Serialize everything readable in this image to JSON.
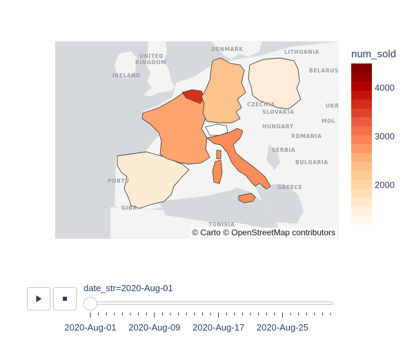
{
  "map": {
    "attribution": "© Carto © OpenStreetMap contributors",
    "land_color": "#f4f5f3",
    "sea_color": "#d5d9dc",
    "labels": {
      "united_kingdom_1": "UNITED",
      "united_kingdom_2": "KINGDOM",
      "ireland": "IRELAND",
      "denmark": "DENMARK",
      "lithuania": "LITHUANIA",
      "belarus": "BELARUS",
      "czechia": "CZECHIA",
      "slovakia": "SLOVAKIA",
      "hungary": "HUNGARY",
      "romania": "ROMANIA",
      "serbia": "SERBIA",
      "bulgaria": "BULGARIA",
      "greece": "GREECE",
      "tunisia": "TUNISIA",
      "portugal_partial": "PORTU",
      "gibraltar_partial": "GIBR",
      "moldova_partial": "MOL",
      "ukraine_partial": "UKR"
    },
    "regions": [
      {
        "name": "Belgium",
        "num_sold": 4300,
        "color": "#d7301f"
      },
      {
        "name": "Italy",
        "num_sold": 3200,
        "color": "#fc8d59"
      },
      {
        "name": "France",
        "num_sold": 2900,
        "color": "#fda46f"
      },
      {
        "name": "Germany",
        "num_sold": 2400,
        "color": "#fdc38d"
      },
      {
        "name": "Spain",
        "num_sold": 1500,
        "color": "#feebd5"
      },
      {
        "name": "Poland",
        "num_sold": 1450,
        "color": "#feecd8"
      }
    ]
  },
  "colorbar": {
    "title": "num_sold",
    "min": 1200,
    "max": 4500,
    "ticks": [
      2000,
      3000,
      4000
    ],
    "tick_labels": [
      "2000",
      "3000",
      "4000"
    ],
    "colors": [
      "#fff7ec",
      "#fee8c8",
      "#fdd49e",
      "#fdbb84",
      "#fc8d59",
      "#ef6548",
      "#d7301f",
      "#b30000",
      "#7f0000"
    ]
  },
  "animation": {
    "play_icon": "play-icon",
    "stop_icon": "stop-icon",
    "slider_label": "date_str=2020-Aug-01",
    "selected_index": 0,
    "tick_count": 31,
    "tick_labels": [
      "2020-Aug-01",
      "2020-Aug-09",
      "2020-Aug-17",
      "2020-Aug-25"
    ]
  }
}
